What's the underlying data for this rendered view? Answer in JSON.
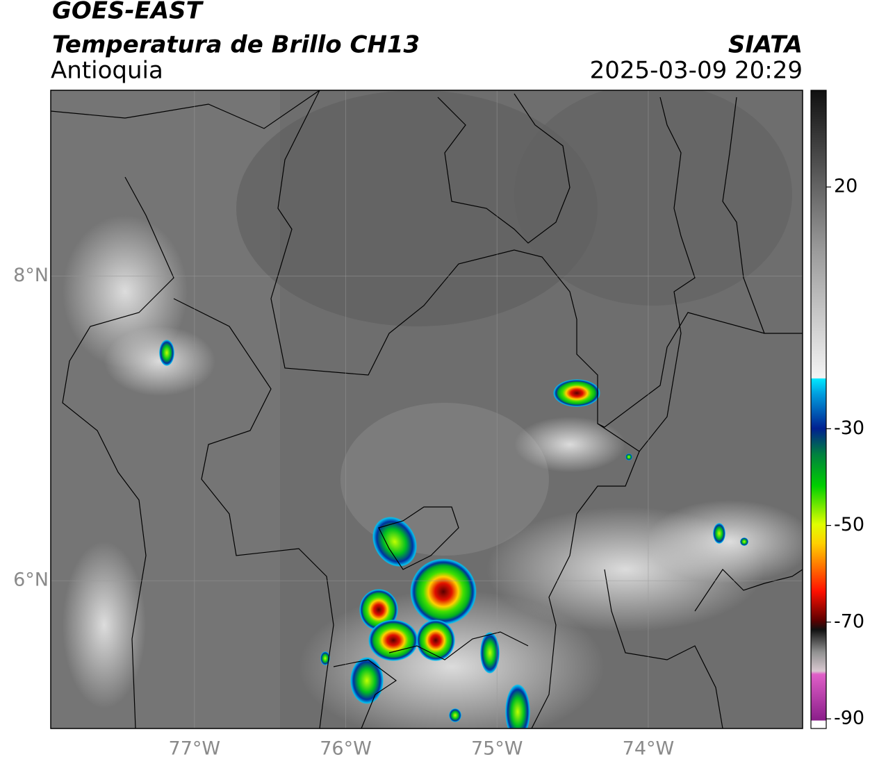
{
  "header": {
    "title": "GOES-EAST",
    "subtitle": "Temperatura de Brillo CH13",
    "region": "Antioquia",
    "source": "SIATA",
    "timestamp": "2025-03-09 20:29"
  },
  "map": {
    "lonlim": [
      -77.95,
      -72.98
    ],
    "latlim": [
      5.03,
      9.22
    ],
    "grid": true,
    "lon_ticks": [
      {
        "value": -77,
        "label": "77°W"
      },
      {
        "value": -76,
        "label": "76°W"
      },
      {
        "value": -75,
        "label": "75°W"
      },
      {
        "value": -74,
        "label": "74°W"
      }
    ],
    "lat_ticks": [
      {
        "value": 8,
        "label": "8°N"
      },
      {
        "value": 6,
        "label": "6°N"
      }
    ]
  },
  "colorbar": {
    "lim": [
      -92,
      40
    ],
    "ticks": [
      20,
      -30,
      -50,
      -70,
      -90
    ]
  }
}
